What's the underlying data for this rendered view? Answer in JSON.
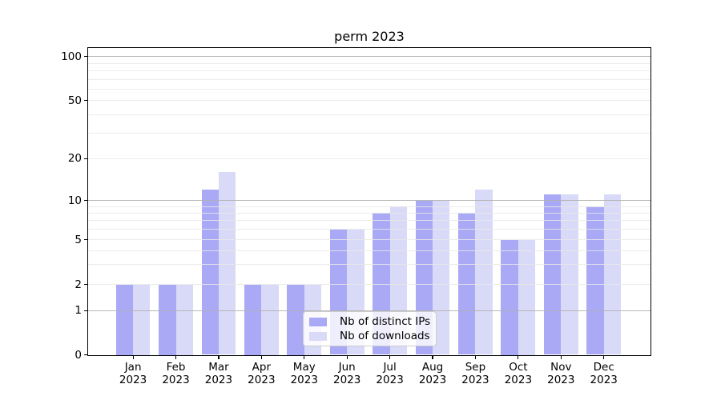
{
  "title": "perm 2023",
  "chart_data": {
    "type": "bar",
    "title": "perm 2023",
    "categories": [
      "Jan 2023",
      "Feb 2023",
      "Mar 2023",
      "Apr 2023",
      "May 2023",
      "Jun 2023",
      "Jul 2023",
      "Aug 2023",
      "Sep 2023",
      "Oct 2023",
      "Nov 2023",
      "Dec 2023"
    ],
    "series": [
      {
        "key": "distinct-ips",
        "name": "Nb of distinct IPs",
        "color": "#a9a9f6",
        "values": [
          2,
          2,
          12,
          2,
          2,
          6,
          8,
          10,
          8,
          5,
          11,
          9
        ]
      },
      {
        "key": "downloads",
        "name": "Nb of downloads",
        "color": "#d9d9f8",
        "values": [
          2,
          2,
          16,
          2,
          2,
          6,
          9,
          10,
          12,
          5,
          11,
          11
        ]
      }
    ],
    "xlabel": "",
    "ylabel": "",
    "yscale": "symlog",
    "yticks": [
      0,
      1,
      2,
      5,
      10,
      20,
      50,
      100
    ],
    "ylim": [
      0,
      115
    ],
    "grid": true,
    "legend_position": "lower center",
    "colors": {
      "major_grid": "#b0b0b0",
      "minor_grid": "#e8e8e8",
      "axis": "#000000",
      "background": "#ffffff"
    }
  }
}
